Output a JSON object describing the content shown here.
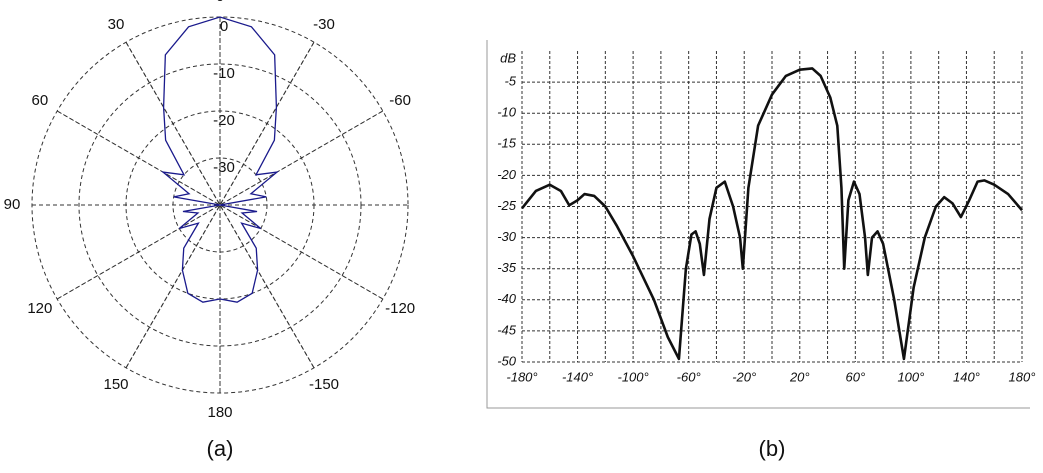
{
  "chart_data": [
    {
      "type": "polar",
      "caption": "(a)",
      "color": "#1a1a8c",
      "theta": [
        -180,
        -170,
        -160,
        -150,
        -140,
        -130,
        -120,
        -110,
        -100,
        -90,
        -80,
        -70,
        -60,
        -50,
        -40,
        -30,
        -20,
        -10,
        0,
        10,
        20,
        30,
        40,
        50,
        60,
        70,
        80,
        90,
        100,
        110,
        120,
        130,
        140,
        150,
        160,
        170,
        180
      ],
      "values": [
        -20,
        -19,
        -20,
        -24,
        -28,
        -34,
        -30,
        -35,
        -32,
        -40,
        -30,
        -33,
        -26,
        -30,
        -22,
        -16,
        -6,
        -1.5,
        0,
        -1.5,
        -6,
        -16,
        -22,
        -30,
        -26,
        -33,
        -30,
        -40,
        -32,
        -35,
        -30,
        -34,
        -28,
        -24,
        -20,
        -19,
        -20
      ],
      "rlim": [
        -40,
        0
      ],
      "rticks": [
        0,
        -10,
        -20,
        -30
      ],
      "thetaticks": [
        0,
        30,
        60,
        90,
        120,
        150,
        180,
        -150,
        -120,
        -60,
        -30
      ],
      "grid": true
    },
    {
      "type": "line",
      "caption": "(b)",
      "ylabel": "dB",
      "color": "#111111",
      "x": [
        -180,
        -170,
        -160,
        -152,
        -146,
        -140,
        -135,
        -128,
        -120,
        -112,
        -100,
        -85,
        -75,
        -67,
        -62,
        -58,
        -55,
        -52,
        -49,
        -45,
        -40,
        -34,
        -28,
        -23,
        -21,
        -17,
        -10,
        0,
        10,
        20,
        29,
        35,
        42,
        47,
        50,
        52,
        55,
        59,
        63,
        67,
        69,
        72,
        76,
        80,
        88,
        95,
        102,
        110,
        118,
        124,
        130,
        136,
        142,
        148,
        153,
        160,
        170,
        180
      ],
      "values": [
        -25.3,
        -22.5,
        -21.5,
        -22.5,
        -24.8,
        -24,
        -23,
        -23.3,
        -25,
        -28,
        -33,
        -40,
        -46,
        -49.5,
        -35,
        -29.5,
        -29,
        -31,
        -36,
        -27,
        -22,
        -21,
        -25,
        -30,
        -35,
        -22,
        -12,
        -7,
        -4,
        -3,
        -2.8,
        -4,
        -7.5,
        -12,
        -22,
        -35,
        -24,
        -21,
        -23,
        -30,
        -36,
        -30,
        -29,
        -31,
        -40,
        -49.5,
        -38,
        -30,
        -25,
        -23.5,
        -24.5,
        -26.7,
        -24,
        -21,
        -20.8,
        -21.5,
        -23,
        -25.6
      ],
      "xlim": [
        -180,
        180
      ],
      "ylim": [
        -50,
        0
      ],
      "xticks": [
        {
          "value": -180,
          "label": "-180°"
        },
        {
          "value": -140,
          "label": "-140°"
        },
        {
          "value": -100,
          "label": "-100°"
        },
        {
          "value": -60,
          "label": "-60°"
        },
        {
          "value": -20,
          "label": "-20°"
        },
        {
          "value": 20,
          "label": "20°"
        },
        {
          "value": 60,
          "label": "60°"
        },
        {
          "value": 100,
          "label": "100°"
        },
        {
          "value": 140,
          "label": "140°"
        },
        {
          "value": 180,
          "label": "180°"
        }
      ],
      "minor_xticks": [
        -160,
        -120,
        -80,
        -40,
        0,
        40,
        80,
        120,
        160
      ],
      "yticks": [
        -5,
        -10,
        -15,
        -20,
        -25,
        -30,
        -35,
        -40,
        -45,
        -50
      ],
      "grid": true
    }
  ]
}
